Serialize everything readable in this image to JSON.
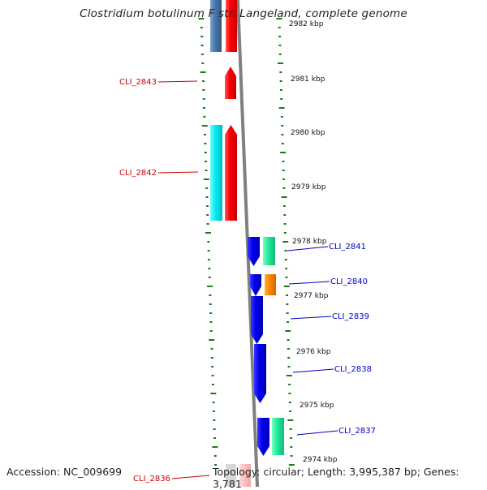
{
  "title": "Clostridium botulinum F str. Langeland, complete genome",
  "accession": "Accession: NC_009699",
  "topology": "Topology: circular; Length: 3,995,387 bp; Genes: 3,781",
  "colors": {
    "left_label": "#cc0000",
    "right_label": "#0000cc",
    "tick": "#1a7a1a",
    "backbone": "#808080"
  },
  "kbp_ticks": [
    "2982 kbp",
    "2981 kbp",
    "2980 kbp",
    "2979 kbp",
    "2978 kbp",
    "2977 kbp",
    "2976 kbp",
    "2975 kbp",
    "2974 kbp"
  ],
  "left_genes": [
    "CLI_2843",
    "CLI_2842",
    "CLI_2836"
  ],
  "right_genes": [
    "CLI_2841",
    "CLI_2840",
    "CLI_2839",
    "CLI_2838",
    "CLI_2837"
  ]
}
